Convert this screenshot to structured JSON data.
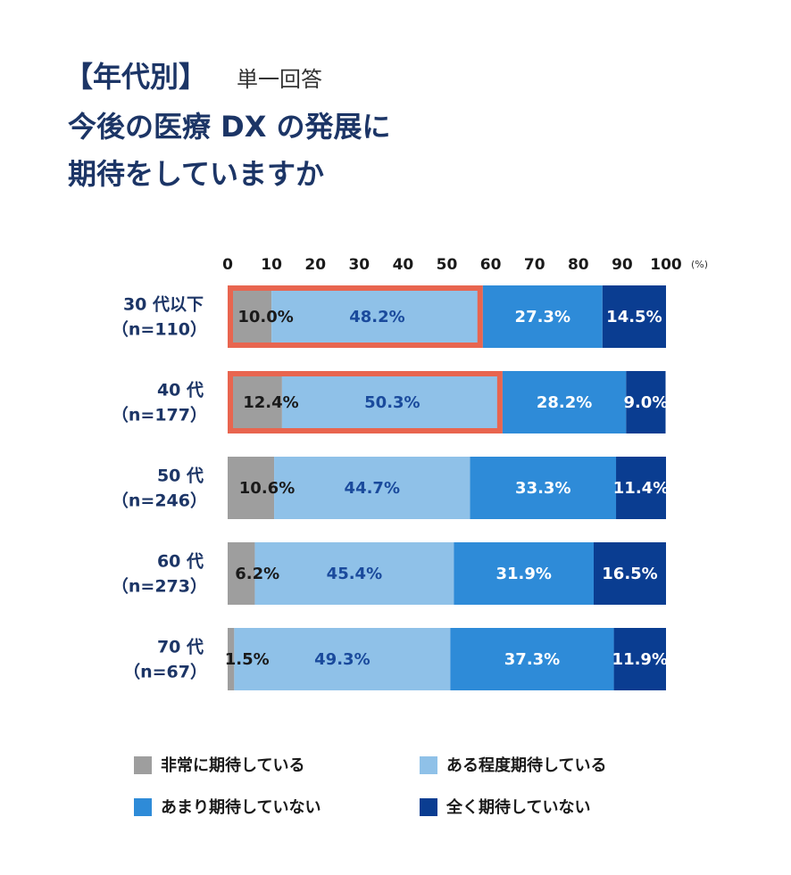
{
  "chart_data": {
    "type": "stacked-bar-horizontal",
    "title_tag": "【年代別】",
    "subtitle": "単一回答",
    "title_lines": [
      "今後の医療 DX の発展に",
      "期待をしていますか"
    ],
    "x_unit": "(%)",
    "categories": [
      "30 代以下",
      "40 代",
      "50 代",
      "60 代",
      "70 代"
    ],
    "n_labels": [
      "（n=110）",
      "（n=177）",
      "（n=246）",
      "（n=273）",
      "（n=67）"
    ],
    "xlim": [
      0,
      100
    ],
    "xticks": [
      0,
      10,
      20,
      30,
      40,
      50,
      60,
      70,
      80,
      90,
      100
    ],
    "highlight_rows": [
      0,
      1
    ],
    "highlight_color": "#e8654f",
    "series": [
      {
        "name": "非常に期待している",
        "color": "#9e9e9e",
        "label_color": "#1a1a1a",
        "values": [
          10.0,
          12.4,
          10.6,
          6.2,
          1.5
        ],
        "value_labels": [
          "10.0%",
          "12.4%",
          "10.6%",
          "6.2%",
          "1.5%"
        ]
      },
      {
        "name": "ある程度期待している",
        "color": "#8fc1e8",
        "label_color": "#1a4a9c",
        "values": [
          48.2,
          50.3,
          44.7,
          45.4,
          49.3
        ],
        "value_labels": [
          "48.2%",
          "50.3%",
          "44.7%",
          "45.4%",
          "49.3%"
        ]
      },
      {
        "name": "あまり期待していない",
        "color": "#2e8bd8",
        "label_color": "#ffffff",
        "values": [
          27.3,
          28.2,
          33.3,
          31.9,
          37.3
        ],
        "value_labels": [
          "27.3%",
          "28.2%",
          "33.3%",
          "31.9%",
          "37.3%"
        ]
      },
      {
        "name": "全く期待していない",
        "color": "#0a3d91",
        "label_color": "#ffffff",
        "values": [
          14.5,
          9.0,
          11.4,
          16.5,
          11.9
        ],
        "value_labels": [
          "14.5%",
          "9.0%",
          "11.4%",
          "16.5%",
          "11.9%"
        ]
      }
    ]
  }
}
